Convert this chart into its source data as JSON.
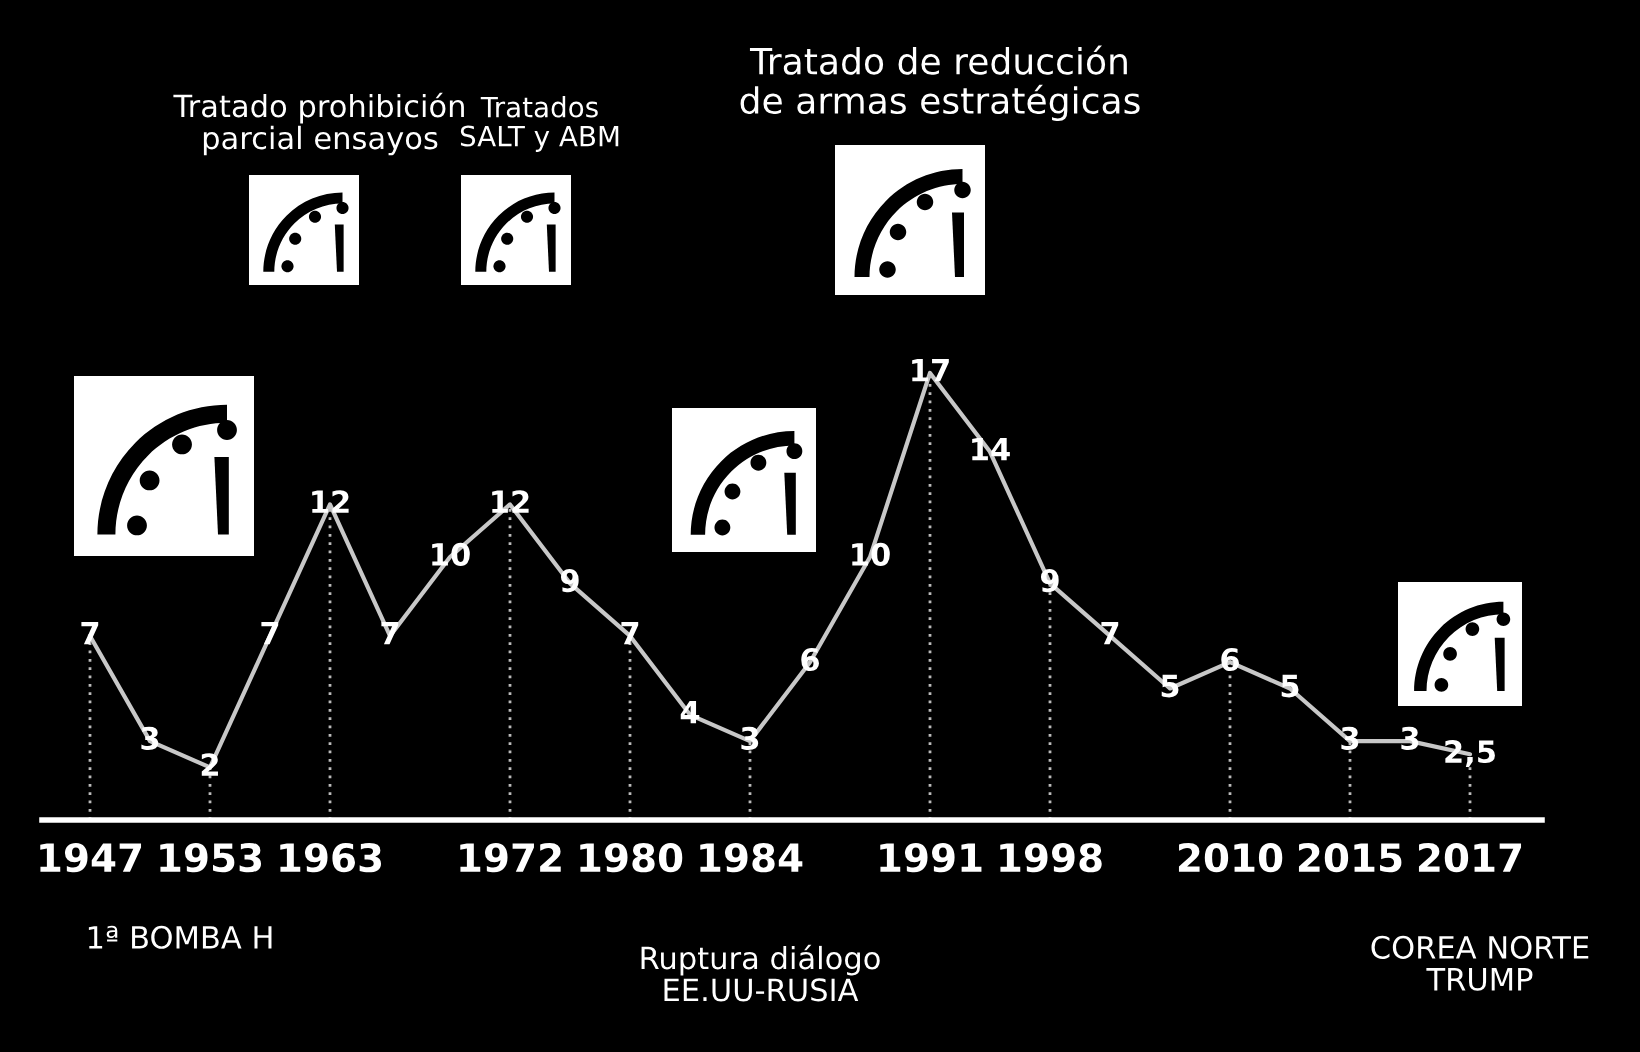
{
  "chart_data": {
    "type": "line",
    "categories": [
      "1947",
      null,
      "1953",
      null,
      "1963",
      null,
      null,
      "1972",
      null,
      "1980",
      null,
      "1984",
      null,
      null,
      "1991",
      null,
      "1998",
      null,
      null,
      "2010",
      null,
      "2015",
      null,
      "2017"
    ],
    "values": [
      7,
      3,
      2,
      7,
      12,
      7,
      10,
      12,
      9,
      7,
      4,
      3,
      6,
      10,
      17,
      14,
      9,
      7,
      5,
      6,
      5,
      3,
      3,
      2.5
    ],
    "value_labels": [
      "7",
      "3",
      "2",
      "7",
      "12",
      "7",
      "10",
      "12",
      "9",
      "7",
      "4",
      "3",
      "6",
      "10",
      "17",
      "14",
      "9",
      "7",
      "5",
      "6",
      "5",
      "3",
      "3",
      "2,5"
    ],
    "color": "#c8c8c8",
    "annotations": [
      "Tratado prohibición\nparcial ensayos",
      "Tratados\nSALT y ABM",
      "Tratado de reducción\nde armas estratégicas",
      "1ª BOMBA H",
      "Ruptura diálogo\nEE.UU-RUSIA",
      "COREA NORTE\nTRUMP"
    ],
    "grid": "x",
    "marker": "none",
    "legend": false,
    "tick_labels": "x"
  }
}
